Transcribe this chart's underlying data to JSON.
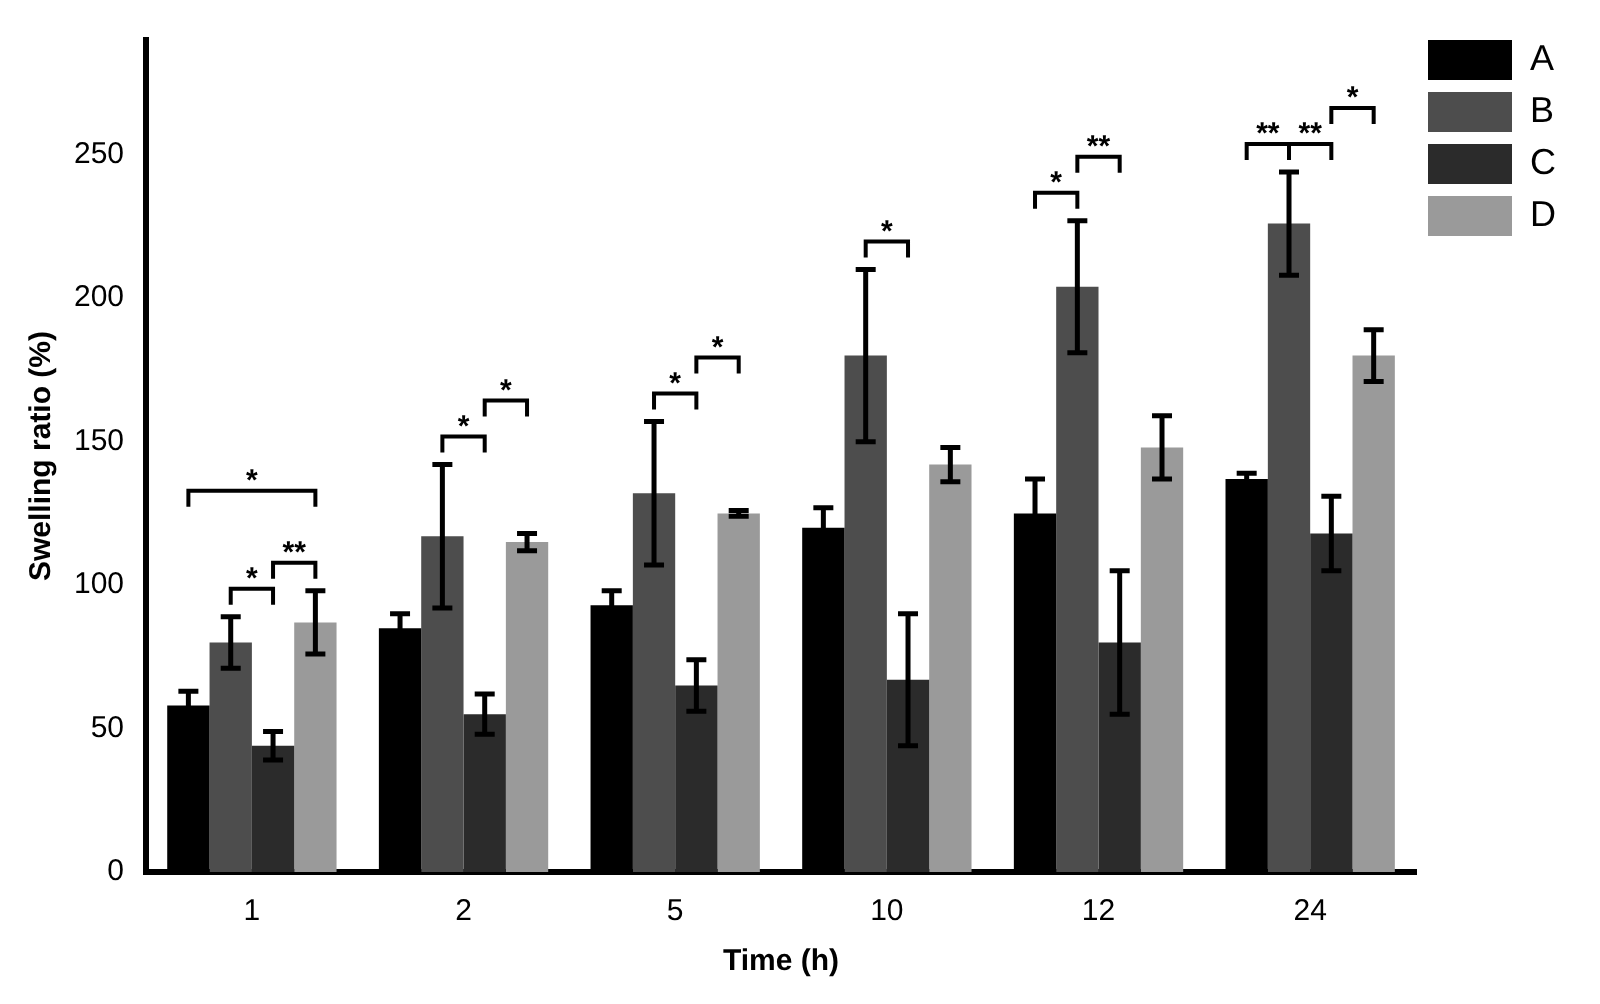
{
  "chart_data": {
    "type": "bar",
    "xlabel": "Time (h)",
    "ylabel": "Swelling ratio (%)",
    "categories": [
      "1",
      "2",
      "5",
      "10",
      "12",
      "24"
    ],
    "series": [
      {
        "name": "A",
        "color": "#000000",
        "values": [
          58,
          85,
          93,
          120,
          125,
          137
        ],
        "errors": [
          5,
          5,
          5,
          7,
          12,
          2
        ]
      },
      {
        "name": "B",
        "color": "#4d4d4d",
        "values": [
          80,
          117,
          132,
          180,
          204,
          226
        ],
        "errors": [
          9,
          25,
          25,
          30,
          23,
          18
        ]
      },
      {
        "name": "C",
        "color": "#2b2b2b",
        "values": [
          44,
          55,
          65,
          67,
          80,
          118
        ],
        "errors": [
          5,
          7,
          9,
          23,
          25,
          13
        ]
      },
      {
        "name": "D",
        "color": "#9a9a9a",
        "values": [
          87,
          115,
          125,
          142,
          148,
          180
        ],
        "errors": [
          11,
          3,
          1,
          6,
          11,
          9
        ]
      }
    ],
    "ylim": [
      0,
      290
    ],
    "yticks": [
      0,
      50,
      100,
      150,
      200,
      250
    ],
    "grid": false,
    "legend": "top right",
    "annotations": [
      "*",
      "*",
      "**",
      "*",
      "*",
      "*",
      "*",
      "*",
      "*",
      "**",
      "**",
      "**",
      "*"
    ]
  }
}
